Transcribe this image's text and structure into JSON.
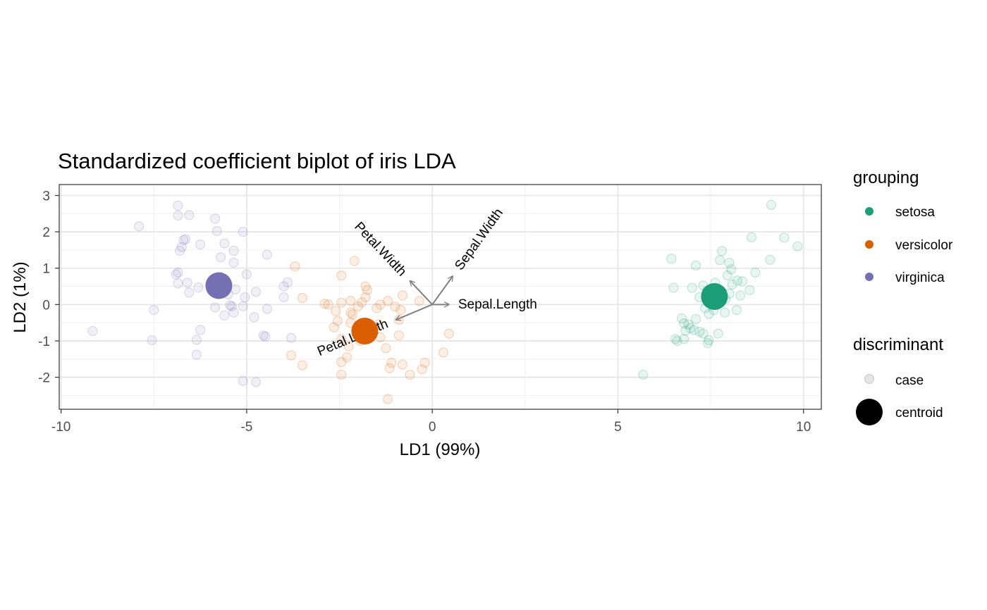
{
  "chart_data": {
    "type": "scatter",
    "title": "Standardized coefficient biplot of iris LDA",
    "xlabel": "LD1 (99%)",
    "ylabel": "LD2 (1%)",
    "xlim": [
      -10.05,
      10.48
    ],
    "ylim": [
      -2.88,
      3.3
    ],
    "x_ticks": [
      -10,
      -5,
      0,
      5,
      10
    ],
    "x_tick_labels": [
      "-10",
      "-5",
      "0",
      "5",
      "10"
    ],
    "y_ticks": [
      -2,
      -1,
      0,
      1,
      2,
      3
    ],
    "y_tick_labels": [
      "-2",
      "-1",
      "0",
      "1",
      "2",
      "3"
    ],
    "grid": true,
    "legend_position": "right",
    "colors": {
      "setosa": "#1b9e77",
      "versicolor": "#d95f02",
      "virginica": "#7570b3"
    },
    "legend": {
      "grouping": {
        "title": "grouping",
        "entries": [
          "setosa",
          "versicolor",
          "virginica"
        ]
      },
      "discriminant": {
        "title": "discriminant",
        "entries": [
          "case",
          "centroid"
        ]
      }
    },
    "series": [
      {
        "name": "setosa",
        "points": [
          [
            9.13,
            2.74
          ],
          [
            9.48,
            1.84
          ],
          [
            8.6,
            1.85
          ],
          [
            9.84,
            1.6
          ],
          [
            7.8,
            1.47
          ],
          [
            6.44,
            1.26
          ],
          [
            7.75,
            1.22
          ],
          [
            8.0,
            1.15
          ],
          [
            9.1,
            1.23
          ],
          [
            7.1,
            1.07
          ],
          [
            8.05,
            0.97
          ],
          [
            8.7,
            0.88
          ],
          [
            7.95,
            0.8
          ],
          [
            8.22,
            0.66
          ],
          [
            8.35,
            0.64
          ],
          [
            7.62,
            0.6
          ],
          [
            8.08,
            0.55
          ],
          [
            7.3,
            0.52
          ],
          [
            6.5,
            0.46
          ],
          [
            7.0,
            0.46
          ],
          [
            8.55,
            0.4
          ],
          [
            7.4,
            0.38
          ],
          [
            7.8,
            0.35
          ],
          [
            8.0,
            0.3
          ],
          [
            8.3,
            0.25
          ],
          [
            7.2,
            0.2
          ],
          [
            7.9,
            0.15
          ],
          [
            7.65,
            0.05
          ],
          [
            7.35,
            -0.1
          ],
          [
            7.58,
            -0.15
          ],
          [
            8.2,
            -0.15
          ],
          [
            7.45,
            -0.26
          ],
          [
            7.88,
            -0.22
          ],
          [
            6.72,
            -0.38
          ],
          [
            7.1,
            -0.4
          ],
          [
            6.78,
            -0.52
          ],
          [
            6.9,
            -0.55
          ],
          [
            6.95,
            -0.65
          ],
          [
            6.82,
            -0.72
          ],
          [
            7.05,
            -0.7
          ],
          [
            7.2,
            -0.75
          ],
          [
            7.3,
            -0.8
          ],
          [
            7.7,
            -0.8
          ],
          [
            6.55,
            -0.95
          ],
          [
            6.78,
            -0.95
          ],
          [
            7.45,
            -0.98
          ],
          [
            7.42,
            -1.06
          ],
          [
            6.6,
            -1.0
          ],
          [
            5.68,
            -1.93
          ],
          [
            7.6,
            0.38
          ]
        ],
        "centroid": [
          7.6,
          0.22
        ]
      },
      {
        "name": "versicolor",
        "points": [
          [
            -3.7,
            1.05
          ],
          [
            -2.45,
            0.8
          ],
          [
            -2.1,
            1.2
          ],
          [
            -1.8,
            0.5
          ],
          [
            -1.75,
            0.4
          ],
          [
            -0.8,
            0.25
          ],
          [
            -1.8,
            0.2
          ],
          [
            -2.2,
            0.1
          ],
          [
            -3.5,
            0.18
          ],
          [
            -1.2,
            0.1
          ],
          [
            -0.35,
            0.1
          ],
          [
            -1.9,
            0.06
          ],
          [
            -2.45,
            0.05
          ],
          [
            -2.8,
            0.0
          ],
          [
            -2.9,
            0.02
          ],
          [
            -1.4,
            0.0
          ],
          [
            -2.0,
            -0.05
          ],
          [
            -1.5,
            -0.1
          ],
          [
            -1.0,
            -0.06
          ],
          [
            -0.85,
            -0.15
          ],
          [
            -2.6,
            -0.18
          ],
          [
            -2.2,
            -0.22
          ],
          [
            -2.15,
            -0.27
          ],
          [
            -0.9,
            -0.42
          ],
          [
            -1.45,
            -0.55
          ],
          [
            -2.55,
            -0.45
          ],
          [
            -2.2,
            -0.5
          ],
          [
            -1.8,
            -0.55
          ],
          [
            -2.65,
            -0.63
          ],
          [
            -2.0,
            -0.62
          ],
          [
            0.45,
            -0.8
          ],
          [
            -0.9,
            -0.85
          ],
          [
            -1.4,
            -0.9
          ],
          [
            -2.45,
            -0.95
          ],
          [
            -1.95,
            -1.0
          ],
          [
            -2.25,
            -1.15
          ],
          [
            -1.25,
            -1.2
          ],
          [
            0.3,
            -1.32
          ],
          [
            -2.3,
            -1.45
          ],
          [
            -3.8,
            -1.4
          ],
          [
            -2.45,
            -1.58
          ],
          [
            -1.1,
            -1.6
          ],
          [
            -0.2,
            -1.6
          ],
          [
            -0.8,
            -1.65
          ],
          [
            -3.5,
            -1.67
          ],
          [
            -1.15,
            -1.75
          ],
          [
            -0.28,
            -1.78
          ],
          [
            -0.6,
            -1.93
          ],
          [
            -2.45,
            -1.93
          ],
          [
            -1.2,
            -2.6
          ]
        ],
        "centroid": [
          -1.82,
          -0.73
        ]
      },
      {
        "name": "virginica",
        "points": [
          [
            -6.85,
            2.72
          ],
          [
            -6.85,
            2.45
          ],
          [
            -6.55,
            2.46
          ],
          [
            -5.85,
            2.36
          ],
          [
            -7.9,
            2.15
          ],
          [
            -5.8,
            2.02
          ],
          [
            -5.1,
            2.0
          ],
          [
            -6.65,
            1.8
          ],
          [
            -6.7,
            1.77
          ],
          [
            -6.25,
            1.65
          ],
          [
            -5.6,
            1.68
          ],
          [
            -6.75,
            1.58
          ],
          [
            -6.8,
            1.48
          ],
          [
            -5.35,
            1.48
          ],
          [
            -4.45,
            1.37
          ],
          [
            -5.7,
            1.3
          ],
          [
            -5.35,
            1.15
          ],
          [
            -6.85,
            0.88
          ],
          [
            -6.9,
            0.83
          ],
          [
            -5.0,
            0.83
          ],
          [
            -6.6,
            0.6
          ],
          [
            -6.85,
            0.58
          ],
          [
            -3.9,
            0.61
          ],
          [
            -5.6,
            0.49
          ],
          [
            -6.3,
            0.47
          ],
          [
            -4.0,
            0.5
          ],
          [
            -5.3,
            0.42
          ],
          [
            -4.75,
            0.35
          ],
          [
            -6.55,
            0.33
          ],
          [
            -5.5,
            0.28
          ],
          [
            -5.05,
            0.2
          ],
          [
            -4.0,
            0.2
          ],
          [
            -5.45,
            -0.02
          ],
          [
            -5.1,
            -0.05
          ],
          [
            -5.85,
            -0.08
          ],
          [
            -5.4,
            -0.05
          ],
          [
            -4.45,
            -0.12
          ],
          [
            -7.5,
            -0.15
          ],
          [
            -5.35,
            -0.22
          ],
          [
            -5.6,
            -0.3
          ],
          [
            -4.8,
            -0.35
          ],
          [
            -6.25,
            -0.7
          ],
          [
            -4.55,
            -0.85
          ],
          [
            -4.5,
            -0.88
          ],
          [
            -3.8,
            -0.92
          ],
          [
            -6.35,
            -0.97
          ],
          [
            -7.55,
            -0.98
          ],
          [
            -6.35,
            -1.38
          ],
          [
            -9.15,
            -0.73
          ],
          [
            -5.1,
            -2.1
          ],
          [
            -4.75,
            -2.13
          ]
        ],
        "centroid": [
          -5.75,
          0.52
        ]
      }
    ],
    "vectors": [
      {
        "name": "Sepal.Length",
        "tip": [
          0.45,
          0.0
        ]
      },
      {
        "name": "Sepal.Width",
        "tip": [
          0.55,
          0.78
        ]
      },
      {
        "name": "Petal.Width",
        "tip": [
          -0.6,
          0.65
        ]
      },
      {
        "name": "Petal.Length",
        "tip": [
          -0.98,
          -0.42
        ]
      }
    ]
  }
}
